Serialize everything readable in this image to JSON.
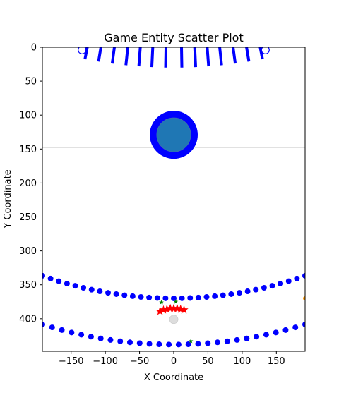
{
  "chart_data": {
    "type": "scatter",
    "title": "Game Entity Scatter Plot",
    "xlabel": "X Coordinate",
    "ylabel": "Y Coordinate",
    "xlim": [
      -192,
      192
    ],
    "ylim": [
      0,
      448
    ],
    "y_inverted": true,
    "grid": false,
    "xticks": [
      -150,
      -100,
      -50,
      0,
      50,
      100,
      150
    ],
    "xtick_labels": [
      "−150",
      "−100",
      "−50",
      "0",
      "50",
      "100",
      "150"
    ],
    "yticks": [
      0,
      50,
      100,
      150,
      200,
      250,
      300,
      350,
      400
    ],
    "ytick_labels": [
      "0",
      "50",
      "100",
      "150",
      "200",
      "250",
      "300",
      "350",
      "400"
    ],
    "reference_line": {
      "y": 148,
      "color": "#dddddd"
    },
    "colors": {
      "blue": "#0000ff",
      "steelblue": "#1f77b4",
      "red": "#ff0000",
      "green": "#008000",
      "gray": "#dddddd",
      "white": "#ffffff",
      "orange": "#ff9900"
    },
    "big_circle": {
      "x": 0,
      "y": 129,
      "outer_radius": 34,
      "inner_radius": 24
    },
    "hollow_markers": [
      {
        "x": -134,
        "y": 4
      },
      {
        "x": 134,
        "y": 4
      }
    ],
    "top_arc_lines": {
      "center_x": 0,
      "center_y": -650,
      "inner_radius": 650,
      "outer_radius": 680,
      "left_angles_deg": [
        -11.0,
        -9.3,
        -7.6,
        -5.9,
        -4.3,
        -2.7,
        -1.0
      ],
      "right_angles_deg": [
        1.0,
        2.7,
        4.3,
        5.9,
        7.6,
        9.3,
        11.0
      ],
      "note_units": "data units"
    },
    "dot_arcs": [
      {
        "name": "",
        "center_x": 0,
        "center_y": -200,
        "radius": 570,
        "x_start": -192,
        "x_end": 192,
        "count": 33
      },
      {
        "name": "",
        "center_x": 0,
        "center_y": -200,
        "radius": 638,
        "x_start": -192,
        "x_end": 192,
        "count": 28
      }
    ],
    "red_stars": [
      {
        "x": -20,
        "y": 389
      },
      {
        "x": -15,
        "y": 387
      },
      {
        "x": -10,
        "y": 386
      },
      {
        "x": -5,
        "y": 385
      },
      {
        "x": 0,
        "y": 385
      },
      {
        "x": 5,
        "y": 385
      },
      {
        "x": 10,
        "y": 386
      },
      {
        "x": 15,
        "y": 387
      }
    ],
    "green_stars": [
      {
        "x": -18,
        "y": 376
      },
      {
        "x": 3,
        "y": 375
      },
      {
        "x": 25,
        "y": 433
      }
    ],
    "gray_dot": {
      "x": 0,
      "y": 401
    },
    "edge_marker": {
      "x": 192,
      "y": 370
    }
  }
}
